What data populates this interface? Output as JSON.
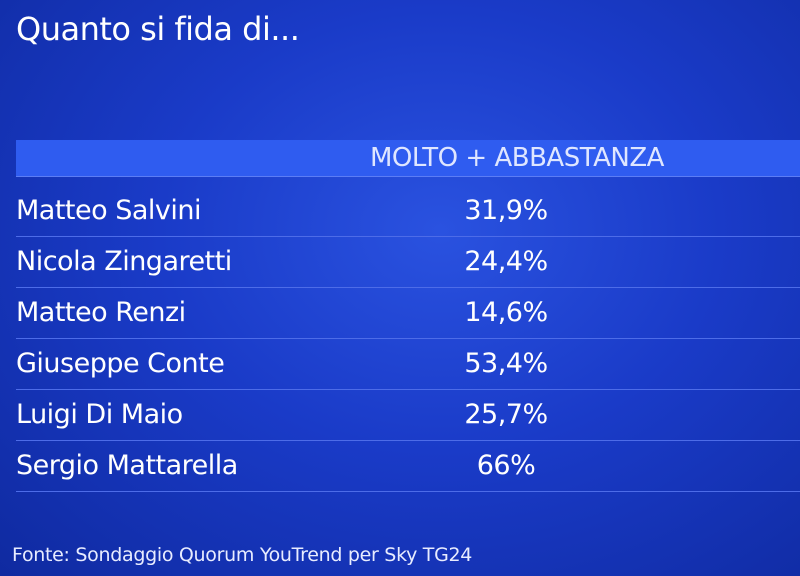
{
  "header": {
    "title": "Quanto si fida di..."
  },
  "table": {
    "columns": [
      "MOLTO + ABBASTANZA"
    ],
    "rows": [
      [
        "Matteo Salvini",
        "31,9%"
      ],
      [
        "Nicola Zingaretti",
        "24,4%"
      ],
      [
        "Matteo Renzi",
        "14,6%"
      ],
      [
        "Giuseppe Conte",
        "53,4%"
      ],
      [
        "Luigi Di Maio",
        "25,7%"
      ],
      [
        "Sergio Mattarella",
        "66%"
      ]
    ]
  },
  "footer": {
    "source": "Fonte: Sondaggio Quorum YouTrend per Sky TG24"
  }
}
